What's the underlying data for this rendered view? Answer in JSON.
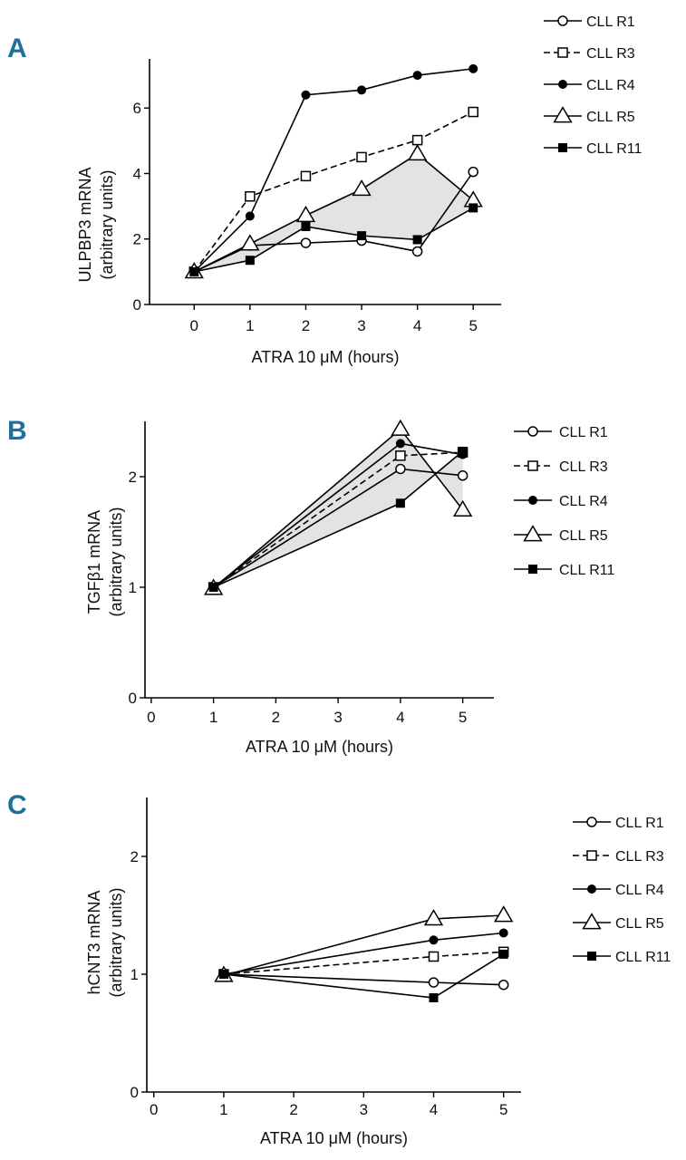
{
  "chart_data": [
    {
      "panel": "A",
      "type": "line",
      "ylabel": "ULPBP3 mRNA\n(arbitrary units)",
      "xlabel": "ATRA 10 μM (hours)",
      "xlim": [
        -0.8,
        5.5
      ],
      "ylim": [
        0,
        7.5
      ],
      "xticks": [
        0,
        1,
        2,
        3,
        4,
        5
      ],
      "yticks": [
        0,
        2,
        4,
        6
      ],
      "legend_position": "top-right",
      "shaded_band": [
        "CLL R5",
        "CLL R11"
      ],
      "series": [
        {
          "name": "CLL R1",
          "marker": "circle-open",
          "dash": "solid",
          "x": [
            0,
            1,
            2,
            3,
            4,
            5
          ],
          "values": [
            1.0,
            1.8,
            1.88,
            1.95,
            1.62,
            4.05
          ]
        },
        {
          "name": "CLL R3",
          "marker": "square-open",
          "dash": "dashed",
          "x": [
            0,
            1,
            2,
            3,
            4,
            5
          ],
          "values": [
            1.0,
            3.3,
            3.92,
            4.5,
            5.02,
            5.88
          ]
        },
        {
          "name": "CLL R4",
          "marker": "circle-filled",
          "dash": "solid",
          "x": [
            0,
            1,
            2,
            3,
            4,
            5
          ],
          "values": [
            1.0,
            2.7,
            6.4,
            6.55,
            7.0,
            7.2
          ]
        },
        {
          "name": "CLL R5",
          "marker": "triangle-open",
          "dash": "solid",
          "x": [
            0,
            1,
            2,
            3,
            4,
            5
          ],
          "values": [
            1.0,
            1.85,
            2.72,
            3.52,
            4.6,
            3.18
          ]
        },
        {
          "name": "CLL R11",
          "marker": "square-filled",
          "dash": "solid",
          "x": [
            0,
            1,
            2,
            3,
            4,
            5
          ],
          "values": [
            1.0,
            1.35,
            2.38,
            2.1,
            1.98,
            2.95
          ]
        }
      ]
    },
    {
      "panel": "B",
      "type": "line",
      "ylabel": "TGFβ1 mRNA\n(arbitrary units)",
      "xlabel": "ATRA 10 μM (hours)",
      "xlim": [
        -0.1,
        5.5
      ],
      "ylim": [
        0,
        2.5
      ],
      "xticks": [
        0,
        1,
        2,
        3,
        4,
        5
      ],
      "yticks": [
        0,
        1,
        2
      ],
      "legend_position": "right",
      "shaded_band": [
        "CLL R5",
        "CLL R11"
      ],
      "series": [
        {
          "name": "CLL R1",
          "marker": "circle-open",
          "dash": "solid",
          "x": [
            1,
            4,
            5
          ],
          "values": [
            1.0,
            2.07,
            2.01
          ]
        },
        {
          "name": "CLL R3",
          "marker": "square-open",
          "dash": "dashed",
          "x": [
            1,
            4,
            5
          ],
          "values": [
            1.0,
            2.19,
            2.22
          ]
        },
        {
          "name": "CLL R4",
          "marker": "circle-filled",
          "dash": "solid",
          "x": [
            1,
            4,
            5
          ],
          "values": [
            1.0,
            2.3,
            2.2
          ]
        },
        {
          "name": "CLL R5",
          "marker": "triangle-open",
          "dash": "solid",
          "x": [
            1,
            4,
            5
          ],
          "values": [
            0.99,
            2.43,
            1.7
          ]
        },
        {
          "name": "CLL R11",
          "marker": "square-filled",
          "dash": "solid",
          "x": [
            1,
            4,
            5
          ],
          "values": [
            1.0,
            1.76,
            2.23
          ]
        }
      ]
    },
    {
      "panel": "C",
      "type": "line",
      "ylabel": "hCNT3 mRNA\n(arbitrary units)",
      "xlabel": "ATRA 10 μM (hours)",
      "xlim": [
        -0.1,
        5.25
      ],
      "ylim": [
        0,
        2.5
      ],
      "xticks": [
        0,
        1,
        2,
        3,
        4,
        5
      ],
      "yticks": [
        0,
        1,
        2
      ],
      "legend_position": "right",
      "shaded_band": [],
      "series": [
        {
          "name": "CLL R1",
          "marker": "circle-open",
          "dash": "solid",
          "x": [
            1,
            4,
            5
          ],
          "values": [
            1.0,
            0.93,
            0.91
          ]
        },
        {
          "name": "CLL R3",
          "marker": "square-open",
          "dash": "dashed",
          "x": [
            1,
            4,
            5
          ],
          "values": [
            1.0,
            1.15,
            1.19
          ]
        },
        {
          "name": "CLL R4",
          "marker": "circle-filled",
          "dash": "solid",
          "x": [
            1,
            4,
            5
          ],
          "values": [
            1.0,
            1.29,
            1.35
          ]
        },
        {
          "name": "CLL R5",
          "marker": "triangle-open",
          "dash": "solid",
          "x": [
            1,
            4,
            5
          ],
          "values": [
            0.99,
            1.47,
            1.5
          ]
        },
        {
          "name": "CLL R11",
          "marker": "square-filled",
          "dash": "solid",
          "x": [
            1,
            4,
            5
          ],
          "values": [
            1.0,
            0.8,
            1.17
          ]
        }
      ]
    }
  ]
}
